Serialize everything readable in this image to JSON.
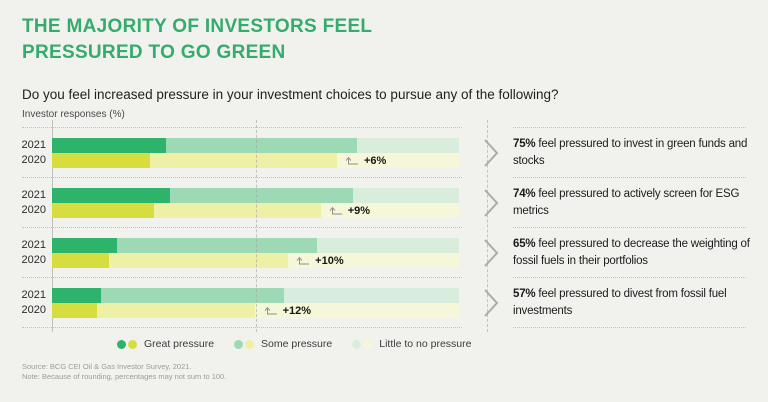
{
  "header": {
    "title": "THE MAJORITY OF INVESTORS FEEL\nPRESSURED TO GO GREEN",
    "question": "Do you feel increased pressure in your investment choices to pursue any of the following?",
    "axis_label": "Investor responses (%)"
  },
  "colors": {
    "background": "#f1f1ee",
    "title_green": "#35ab6e",
    "green_2021": [
      "#2eb36b",
      "#9ed9b5",
      "#d9eddd"
    ],
    "yellow_2020": [
      "#d5de3e",
      "#eef0a6",
      "#f6f6d8"
    ],
    "axis_line": "#bfbfbd",
    "chevron_gray": "#ababab",
    "arrow_gray": "#8f8f8d"
  },
  "legend": {
    "items": [
      {
        "label": "Great pressure",
        "green": "#2eb36b",
        "yellow": "#d5de3e"
      },
      {
        "label": "Some pressure",
        "green": "#9ed9b5",
        "yellow": "#eef0a6"
      },
      {
        "label": "Little to no pressure",
        "green": "#d9eddd",
        "yellow": "#f6f6d8"
      }
    ]
  },
  "footer": {
    "source": "Source: BCG CEI Oil & Gas Investor Survey, 2021.",
    "note": "Note: Because of rounding, percentages may not sum to 100."
  },
  "chart_data": {
    "type": "bar",
    "variant": "horizontal-stacked-grouped",
    "title": "Do you feel increased pressure in your investment choices to pursue any of the following?",
    "xlabel": "Investor responses (%)",
    "xlim": [
      0,
      100
    ],
    "grid": "dashed vertical guide at 50%",
    "legend_position": "bottom",
    "segments": [
      "Great pressure",
      "Some pressure",
      "Little to no pressure"
    ],
    "groups": [
      {
        "statement_bold": "75%",
        "statement_rest": " feel pressured to invest in green funds and stocks",
        "delta_label": "+6%",
        "rows": [
          {
            "year": "2021",
            "values": [
              28,
              47,
              25
            ]
          },
          {
            "year": "2020",
            "values": [
              24,
              46,
              30
            ]
          }
        ]
      },
      {
        "statement_bold": "74%",
        "statement_rest": " feel pressured to actively screen for ESG metrics",
        "delta_label": "+9%",
        "rows": [
          {
            "year": "2021",
            "values": [
              29,
              45,
              26
            ]
          },
          {
            "year": "2020",
            "values": [
              25,
              41,
              34
            ]
          }
        ]
      },
      {
        "statement_bold": "65%",
        "statement_rest": " feel pressured to decrease the weighting of fossil fuels in their portfolios",
        "delta_label": "+10%",
        "rows": [
          {
            "year": "2021",
            "values": [
              16,
              49,
              35
            ]
          },
          {
            "year": "2020",
            "values": [
              14,
              44,
              42
            ]
          }
        ]
      },
      {
        "statement_bold": "57%",
        "statement_rest": " feel pressured to divest from fossil fuel investments",
        "delta_label": "+12%",
        "rows": [
          {
            "year": "2021",
            "values": [
              12,
              45,
              43
            ]
          },
          {
            "year": "2020",
            "values": [
              11,
              39,
              50
            ]
          }
        ]
      }
    ]
  }
}
